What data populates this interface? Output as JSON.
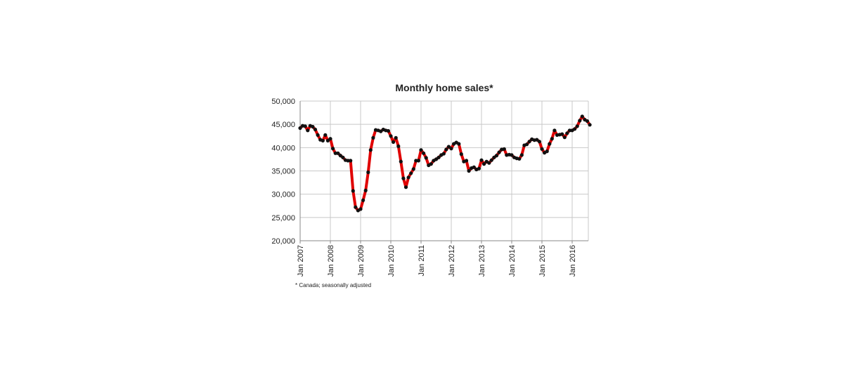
{
  "chart_data": {
    "type": "line",
    "title": "Monthly home sales*",
    "footnote": "* Canada; seasonally adjusted",
    "xlabel": "",
    "ylabel": "",
    "ylim": [
      20000,
      50000
    ],
    "y_ticks": [
      "20,000",
      "25,000",
      "30,000",
      "35,000",
      "40,000",
      "45,000",
      "50,000"
    ],
    "x_ticks": [
      "Jan 2007",
      "Jan 2008",
      "Jan 2009",
      "Jan 2010",
      "Jan 2011",
      "Jan 2012",
      "Jan 2013",
      "Jan 2014",
      "Jan 2015",
      "Jan 2016"
    ],
    "grid": true,
    "line_color": "#e00000",
    "marker_color": "#111111",
    "x_start": "Jan 2007",
    "series": [
      {
        "values": [
          44200,
          44700,
          44600,
          43700,
          44700,
          44500,
          43900,
          42700,
          41700,
          41500,
          42700,
          41500,
          41900,
          39800,
          38800,
          38800,
          38300,
          37900,
          37300,
          37200,
          37200,
          30700,
          27200,
          26500,
          26800,
          28700,
          30800,
          34700,
          39500,
          42100,
          43800,
          43700,
          43500,
          43900,
          43700,
          43600,
          42500,
          41200,
          42100,
          40300,
          37000,
          33400,
          31500,
          33600,
          34500,
          35400,
          37200,
          37200,
          39500,
          38800,
          37800,
          36200,
          36500,
          37200,
          37500,
          37900,
          38400,
          38700,
          39600,
          40200,
          39800,
          40800,
          41100,
          40800,
          38600,
          37000,
          37200,
          35000,
          35600,
          35800,
          35300,
          35500,
          37300,
          36500,
          37000,
          36700,
          37300,
          37900,
          38300,
          39000,
          39600,
          39700,
          38400,
          38500,
          38400,
          37900,
          37700,
          37600,
          38400,
          40500,
          40700,
          41300,
          41800,
          41600,
          41700,
          41300,
          39700,
          38900,
          39200,
          40800,
          41900,
          43700,
          42700,
          42800,
          42900,
          42200,
          43100,
          43700,
          43700,
          44000,
          44600,
          45800,
          46700,
          46000,
          45700,
          44900
        ]
      }
    ]
  }
}
